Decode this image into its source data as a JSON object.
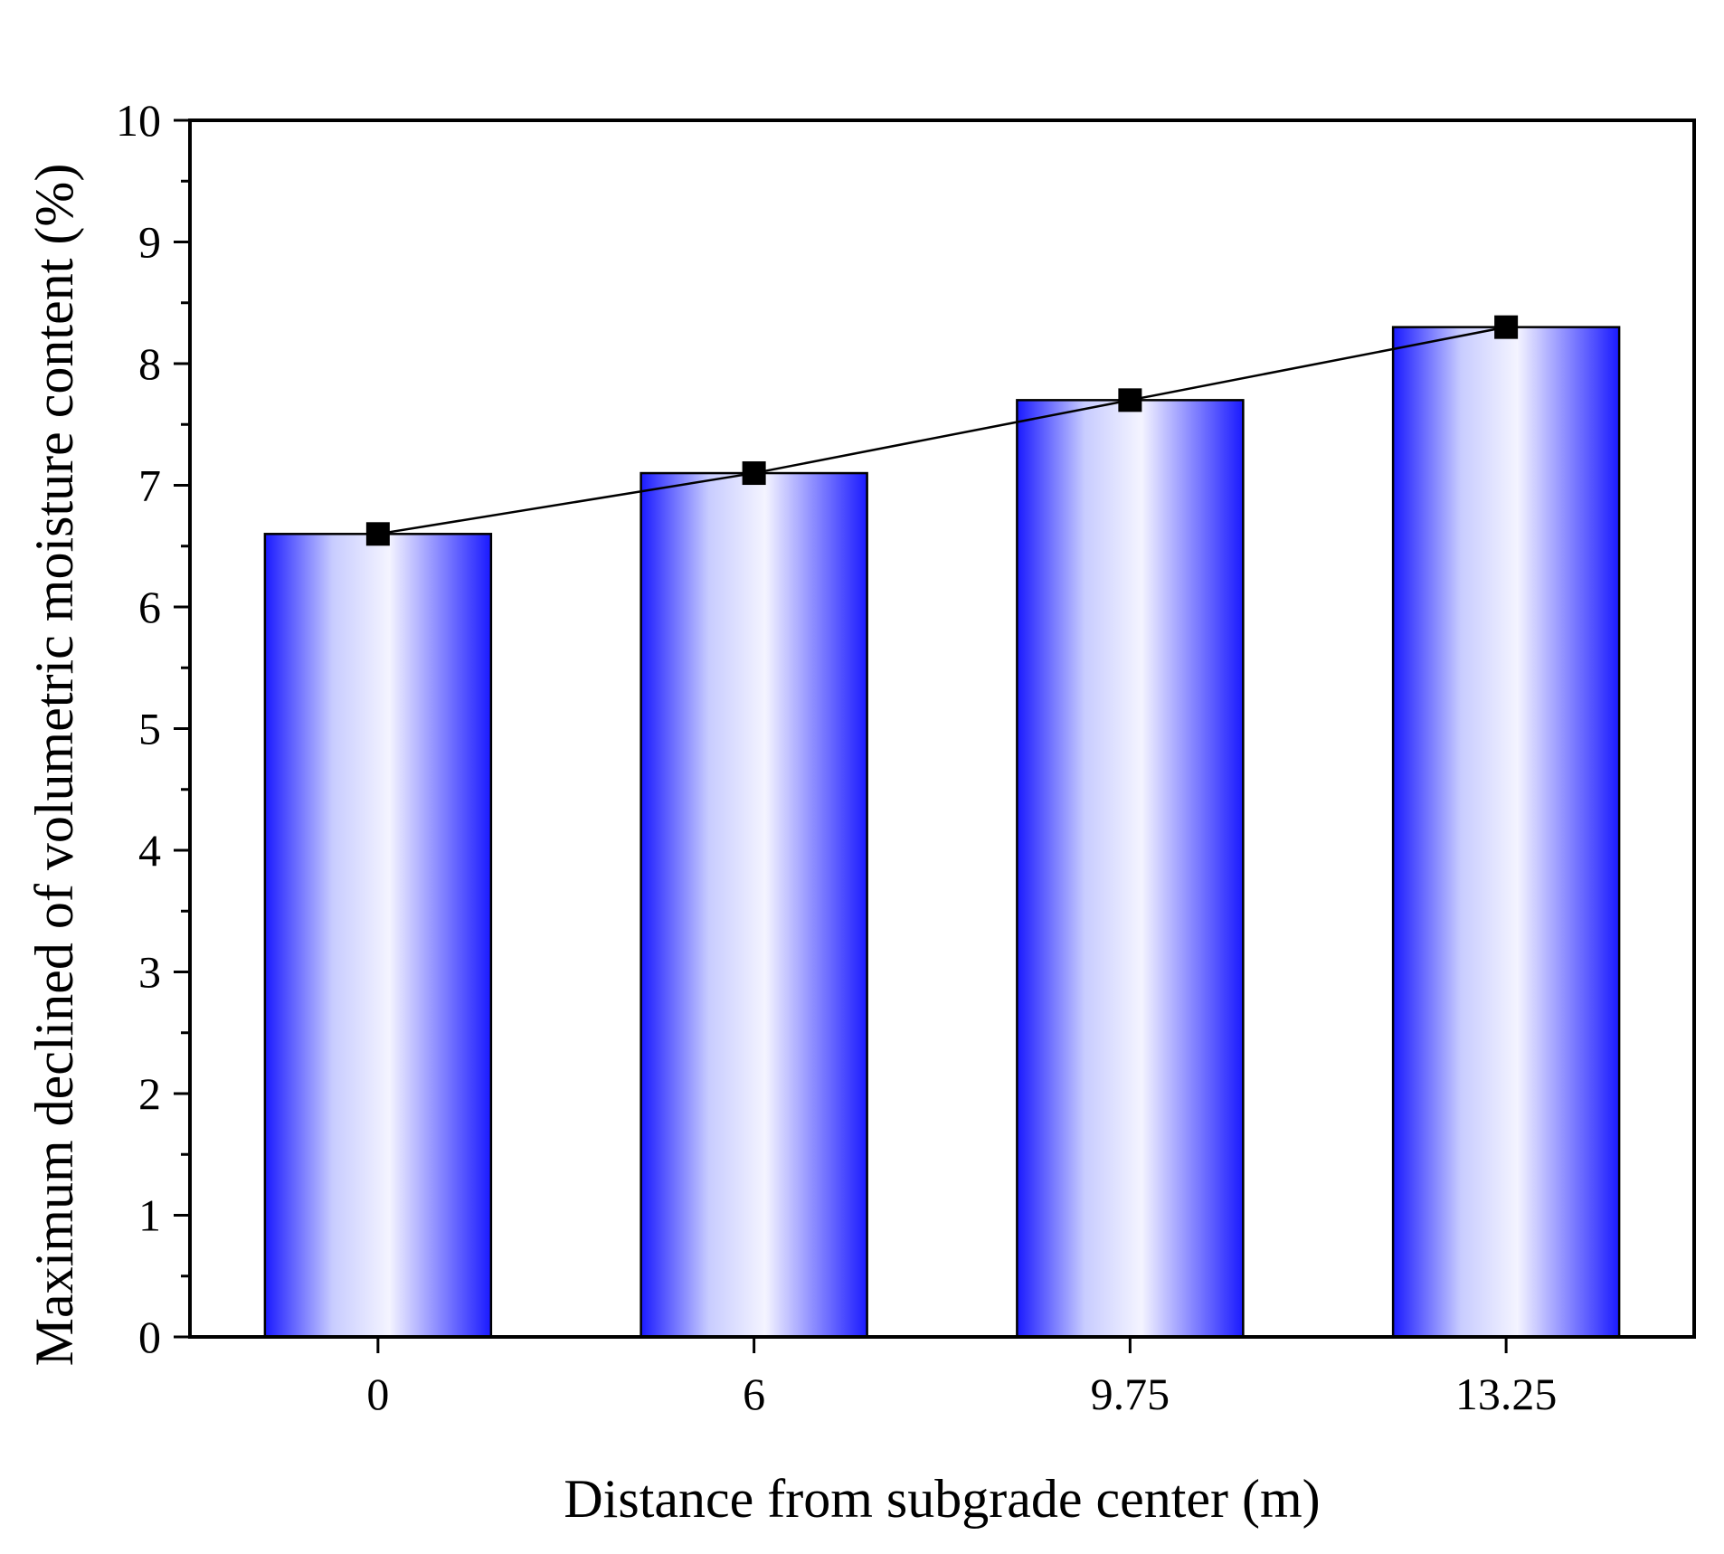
{
  "chart_data": {
    "type": "bar",
    "categories": [
      "0",
      "6",
      "9.75",
      "13.25"
    ],
    "values": [
      6.6,
      7.1,
      7.7,
      8.3
    ],
    "overlay_line": {
      "marker": "square",
      "values": [
        6.6,
        7.1,
        7.7,
        8.3
      ],
      "color": "#000000"
    },
    "xlabel": "Distance from subgrade center (m)",
    "ylabel": "Maximum declined of volumetric moisture content  (%)",
    "ylim": [
      0,
      10
    ],
    "yticks": [
      "0",
      "1",
      "2",
      "3",
      "4",
      "5",
      "6",
      "7",
      "8",
      "9",
      "10"
    ],
    "grid": false,
    "legend": "none",
    "colors": {
      "bar_edge": "#1a1aff",
      "bar_center": "#f4f4ff",
      "bar_outline": "#000000",
      "axis": "#000000"
    }
  }
}
